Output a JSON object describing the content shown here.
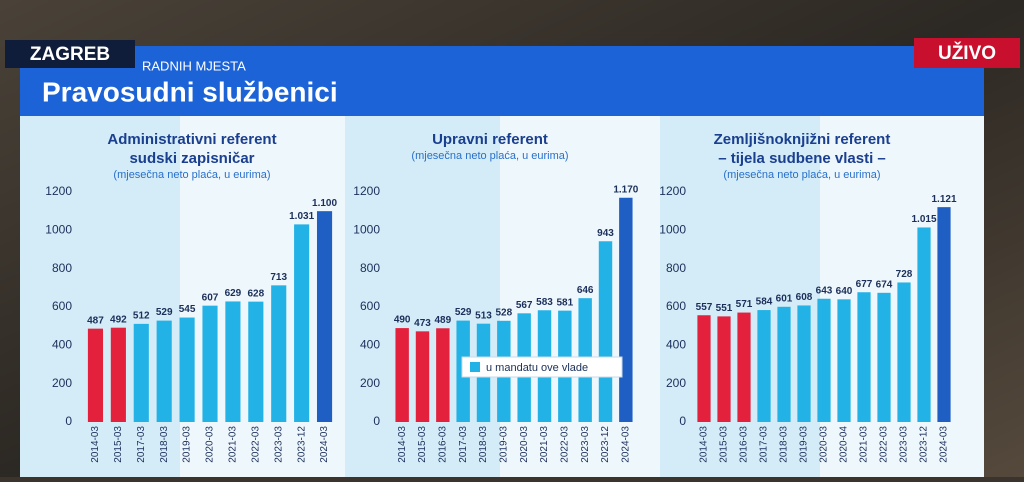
{
  "overlay": {
    "location": "ZAGREB",
    "live": "UŽIVO"
  },
  "header": {
    "kicker": "RADNIH MJESTA",
    "title": "Pravosudni službenici"
  },
  "chart_data": [
    {
      "type": "bar",
      "title": [
        "Administrativni referent",
        "sudski zapisničar"
      ],
      "subtitle": "(mjesečna neto plaća, u eurima)",
      "categories": [
        "2014-03",
        "2015-03",
        "2017-03",
        "2018-03",
        "2019-03",
        "2020-03",
        "2021-03",
        "2022-03",
        "2023-03",
        "2023-12",
        "2024-03"
      ],
      "values": [
        487,
        492,
        512,
        529,
        545,
        607,
        629,
        628,
        713,
        1031,
        1100
      ],
      "value_labels": [
        "487",
        "492",
        "512",
        "529",
        "545",
        "607",
        "629",
        "628",
        "713",
        "1.031",
        "1.100"
      ],
      "colors": [
        "#e3213d",
        "#e3213d",
        "#22b2e6",
        "#22b2e6",
        "#22b2e6",
        "#22b2e6",
        "#22b2e6",
        "#22b2e6",
        "#22b2e6",
        "#22b2e6",
        "#1f5fc4"
      ],
      "ylim": [
        0,
        1200
      ],
      "yticks": [
        0,
        200,
        400,
        600,
        800,
        1000,
        1200
      ]
    },
    {
      "type": "bar",
      "title": [
        "Upravni referent"
      ],
      "subtitle": "(mjesečna neto plaća, u eurima)",
      "categories": [
        "2014-03",
        "2015-03",
        "2016-03",
        "2017-03",
        "2018-03",
        "2019-03",
        "2020-03",
        "2021-03",
        "2022-03",
        "2023-03",
        "2023-12",
        "2024-03"
      ],
      "values": [
        490,
        473,
        489,
        529,
        513,
        528,
        567,
        583,
        581,
        646,
        943,
        1170
      ],
      "value_labels": [
        "490",
        "473",
        "489",
        "529",
        "513",
        "528",
        "567",
        "583",
        "581",
        "646",
        "943",
        "1.170"
      ],
      "colors": [
        "#e3213d",
        "#e3213d",
        "#e3213d",
        "#22b2e6",
        "#22b2e6",
        "#22b2e6",
        "#22b2e6",
        "#22b2e6",
        "#22b2e6",
        "#22b2e6",
        "#22b2e6",
        "#1f5fc4"
      ],
      "ylim": [
        0,
        1200
      ],
      "yticks": [
        0,
        200,
        400,
        600,
        800,
        1000,
        1200
      ],
      "legend": {
        "label": "u mandatu ove vlade",
        "color": "#22b2e6"
      }
    },
    {
      "type": "bar",
      "title": [
        "Zemljišnoknjižni referent",
        "– tijela sudbene vlasti –"
      ],
      "subtitle": "(mjesečna neto plaća, u eurima)",
      "categories": [
        "2014-03",
        "2015-03",
        "2016-03",
        "2017-03",
        "2018-03",
        "2019-03",
        "2020-03",
        "2020-04",
        "2021-03",
        "2022-03",
        "2023-03",
        "2023-12",
        "2024-03"
      ],
      "values": [
        557,
        551,
        571,
        584,
        601,
        608,
        643,
        640,
        677,
        674,
        728,
        1015,
        1121
      ],
      "value_labels": [
        "557",
        "551",
        "571",
        "584",
        "601",
        "608",
        "643",
        "640",
        "677",
        "674",
        "728",
        "1.015",
        "1.121"
      ],
      "colors": [
        "#e3213d",
        "#e3213d",
        "#e3213d",
        "#22b2e6",
        "#22b2e6",
        "#22b2e6",
        "#22b2e6",
        "#22b2e6",
        "#22b2e6",
        "#22b2e6",
        "#22b2e6",
        "#22b2e6",
        "#1f5fc4"
      ],
      "ylim": [
        0,
        1200
      ],
      "yticks": [
        0,
        200,
        400,
        600,
        800,
        1000,
        1200
      ]
    }
  ]
}
